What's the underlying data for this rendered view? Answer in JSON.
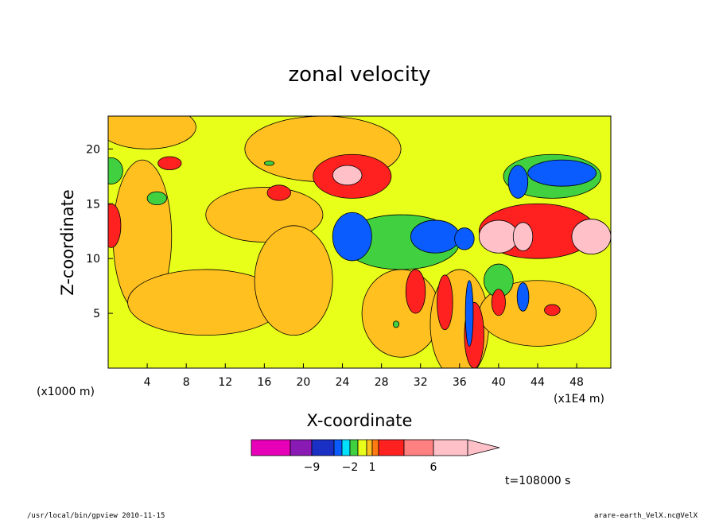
{
  "colors": {
    "background": "#ffffff",
    "scale": [
      "#e800b8",
      "#8a1ab4",
      "#1a2fc4",
      "#0a5cff",
      "#00e0ff",
      "#40d040",
      "#e8ff1a",
      "#ffc020",
      "#ff7a10",
      "#ff2020",
      "#ff8080",
      "#ffc0c8"
    ]
  },
  "chart_data": {
    "type": "heatmap",
    "title": "zonal velocity",
    "xlabel": "X-coordinate",
    "ylabel": "Z-coordinate",
    "x_unit_left": "(x1000 m)",
    "x_unit_right": "(x1E4 m)",
    "xlim": [
      0,
      51.5
    ],
    "ylim": [
      0,
      23
    ],
    "xticks": [
      4,
      8,
      12,
      16,
      20,
      24,
      28,
      32,
      36,
      40,
      44,
      48
    ],
    "yticks": [
      5,
      10,
      15,
      20
    ],
    "colorbar": {
      "labels": [
        {
          "value": -9,
          "text": "−9"
        },
        {
          "value": -2,
          "text": "−2"
        },
        {
          "value": 1,
          "text": "1"
        },
        {
          "value": 6,
          "text": "6"
        }
      ],
      "levels": [
        -15,
        -12,
        -9,
        -6,
        -3,
        -2,
        -1,
        0,
        1,
        2,
        3,
        6,
        9,
        12
      ]
    },
    "time_label": "t=108000 s",
    "regions": [
      {
        "level": 0,
        "x": 16,
        "y": 14,
        "rx": 6,
        "ry": 2.5
      },
      {
        "level": 0,
        "x": 3.5,
        "y": 12,
        "rx": 3,
        "ry": 7
      },
      {
        "level": 0,
        "x": 10,
        "y": 6,
        "rx": 8,
        "ry": 3
      },
      {
        "level": 0,
        "x": 19,
        "y": 8,
        "rx": 4,
        "ry": 5
      },
      {
        "level": 0,
        "x": 30,
        "y": 5,
        "rx": 4,
        "ry": 4
      },
      {
        "level": 0,
        "x": 36,
        "y": 4,
        "rx": 3,
        "ry": 5
      },
      {
        "level": 0,
        "x": 44,
        "y": 5,
        "rx": 6,
        "ry": 3
      },
      {
        "level": 0,
        "x": 22,
        "y": 20,
        "rx": 8,
        "ry": 3
      },
      {
        "level": 0,
        "x": 4,
        "y": 22,
        "rx": 5,
        "ry": 2
      },
      {
        "level": -2,
        "x": 0.3,
        "y": 18,
        "rx": 1.2,
        "ry": 1.2
      },
      {
        "level": -2,
        "x": 5,
        "y": 15.5,
        "rx": 1,
        "ry": 0.6
      },
      {
        "level": 2,
        "x": 0.3,
        "y": 13,
        "rx": 1,
        "ry": 2
      },
      {
        "level": 2,
        "x": 6.3,
        "y": 18.7,
        "rx": 1.2,
        "ry": 0.6
      },
      {
        "level": 2,
        "x": 17.5,
        "y": 16,
        "rx": 1.2,
        "ry": 0.7
      },
      {
        "level": 2,
        "x": 25,
        "y": 17.5,
        "rx": 4,
        "ry": 2
      },
      {
        "level": 6,
        "x": 24.5,
        "y": 17.6,
        "rx": 1.5,
        "ry": 0.9
      },
      {
        "level": -2,
        "x": 30,
        "y": 11.5,
        "rx": 6,
        "ry": 2.5
      },
      {
        "level": -6,
        "x": 25,
        "y": 12,
        "rx": 2,
        "ry": 2.2
      },
      {
        "level": -6,
        "x": 33.5,
        "y": 12,
        "rx": 2.5,
        "ry": 1.5
      },
      {
        "level": -6,
        "x": 36.5,
        "y": 11.8,
        "rx": 1,
        "ry": 1
      },
      {
        "level": 2,
        "x": 31.5,
        "y": 7,
        "rx": 1,
        "ry": 2
      },
      {
        "level": 2,
        "x": 34.5,
        "y": 6,
        "rx": 0.8,
        "ry": 2.5
      },
      {
        "level": 2,
        "x": 37.5,
        "y": 3,
        "rx": 1,
        "ry": 3
      },
      {
        "level": -6,
        "x": 37,
        "y": 5,
        "rx": 0.4,
        "ry": 3
      },
      {
        "level": 2,
        "x": 44,
        "y": 12.5,
        "rx": 6,
        "ry": 2.5
      },
      {
        "level": 6,
        "x": 40,
        "y": 12,
        "rx": 2,
        "ry": 1.5
      },
      {
        "level": 6,
        "x": 42.5,
        "y": 12,
        "rx": 1,
        "ry": 1.3
      },
      {
        "level": 6,
        "x": 49.5,
        "y": 12,
        "rx": 2,
        "ry": 1.6
      },
      {
        "level": -2,
        "x": 45.5,
        "y": 17.5,
        "rx": 5,
        "ry": 2
      },
      {
        "level": -6,
        "x": 46.5,
        "y": 17.8,
        "rx": 3.5,
        "ry": 1.2
      },
      {
        "level": -6,
        "x": 42,
        "y": 17,
        "rx": 1,
        "ry": 1.5
      },
      {
        "level": -2,
        "x": 40,
        "y": 8,
        "rx": 1.5,
        "ry": 1.5
      },
      {
        "level": -6,
        "x": 42.5,
        "y": 6.5,
        "rx": 0.6,
        "ry": 1.3
      },
      {
        "level": 2,
        "x": 40,
        "y": 6,
        "rx": 0.7,
        "ry": 1.2
      },
      {
        "level": 2,
        "x": 45.5,
        "y": 5.3,
        "rx": 0.8,
        "ry": 0.5
      },
      {
        "level": -2,
        "x": 29.5,
        "y": 4,
        "rx": 0.3,
        "ry": 0.3
      },
      {
        "level": -2,
        "x": 16.5,
        "y": 18.7,
        "rx": 0.5,
        "ry": 0.2
      }
    ]
  },
  "footer": {
    "left": "/usr/local/bin/gpview 2010-11-15",
    "right": "arare-earth_VelX.nc@VelX"
  }
}
